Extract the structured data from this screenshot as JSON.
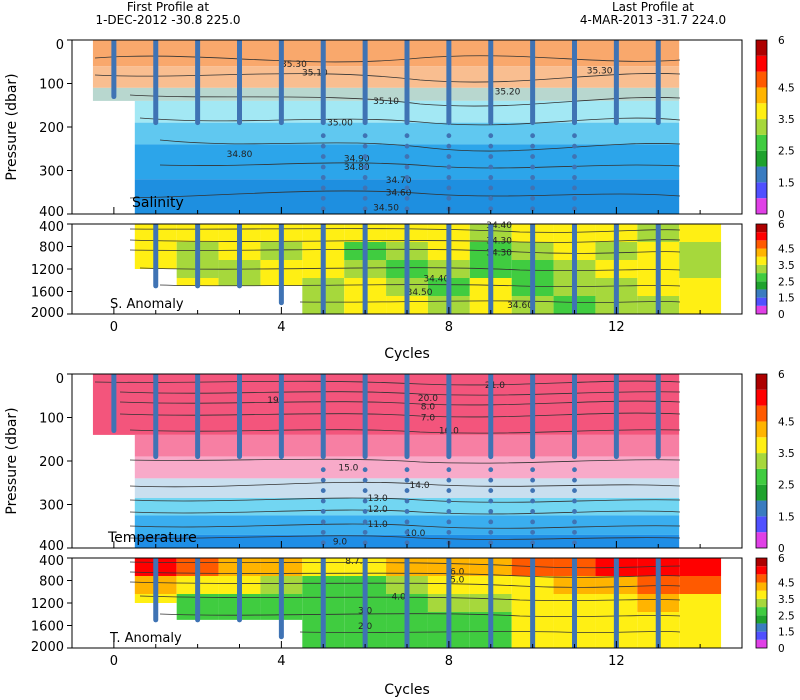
{
  "header": {
    "first_label": "First Profile at",
    "first_info": "1-DEC-2012   -30.8 225.0",
    "last_label": "Last Profile at",
    "last_info": "4-MAR-2013   -31.7 224.0"
  },
  "colorbar": {
    "ticks": [
      "0",
      "1.5",
      "2.5",
      "3.5",
      "4.5",
      "6"
    ],
    "colors": [
      "#e040e6",
      "#5050ff",
      "#3a7cc0",
      "#1fa22d",
      "#40cc40",
      "#a6d83c",
      "#ffef14",
      "#ffb400",
      "#ff5a00",
      "#ff0000",
      "#ad0000"
    ]
  },
  "colors": {
    "profile_marker": "#3f73b4",
    "contour": "#333333"
  },
  "chart_data": [
    {
      "type": "heatmap",
      "name": "salinity-panel",
      "label": "Salinity",
      "ylabel": "Pressure (dbar)",
      "xlim": [
        -1,
        15
      ],
      "ylim": [
        400,
        0
      ],
      "yticks": [
        "0",
        "100",
        "200",
        "300",
        "400"
      ],
      "bands": [
        {
          "from": 0,
          "to": 60,
          "color": "#f9a86c"
        },
        {
          "from": 60,
          "to": 110,
          "color": "#f9be90"
        },
        {
          "from": 110,
          "to": 140,
          "color": "#b8d7cf"
        },
        {
          "from": 140,
          "to": 190,
          "color": "#a3e8f4"
        },
        {
          "from": 190,
          "to": 240,
          "color": "#60c8f0"
        },
        {
          "from": 240,
          "to": 320,
          "color": "#2ca5ea"
        },
        {
          "from": 320,
          "to": 400,
          "color": "#1e8fe0"
        }
      ],
      "contour_labels": [
        {
          "text": "35.30",
          "x": 4.3,
          "y": 55
        },
        {
          "text": "35.30",
          "x": 11.6,
          "y": 70
        },
        {
          "text": "35.10",
          "x": 4.8,
          "y": 75
        },
        {
          "text": "35.20",
          "x": 9.4,
          "y": 118
        },
        {
          "text": "35.10",
          "x": 6.5,
          "y": 140
        },
        {
          "text": "35.00",
          "x": 5.4,
          "y": 190
        },
        {
          "text": "34.80",
          "x": 3.0,
          "y": 262
        },
        {
          "text": "34.90",
          "x": 5.8,
          "y": 272
        },
        {
          "text": "34.80",
          "x": 5.8,
          "y": 292
        },
        {
          "text": "34.70",
          "x": 6.8,
          "y": 322
        },
        {
          "text": "34.60",
          "x": 6.8,
          "y": 350
        },
        {
          "text": "34.50",
          "x": 6.5,
          "y": 385
        }
      ]
    },
    {
      "type": "heatmap",
      "name": "salinity-anomaly-panel",
      "label": "S. Anomaly",
      "ylim": [
        2000,
        400
      ],
      "yticks": [
        "400",
        "800",
        "1200",
        "1600",
        "2000"
      ],
      "contour_labels": [
        {
          "text": "34.40",
          "x": 9.2,
          "y": 420
        },
        {
          "text": "34.30",
          "x": 9.2,
          "y": 690
        },
        {
          "text": "34.30",
          "x": 9.2,
          "y": 910
        },
        {
          "text": "34.40",
          "x": 7.7,
          "y": 1370
        },
        {
          "text": "34.50",
          "x": 7.3,
          "y": 1610
        },
        {
          "text": "34.60",
          "x": 9.7,
          "y": 1840
        }
      ]
    },
    {
      "type": "heatmap",
      "name": "temperature-panel",
      "label": "Temperature",
      "ylabel": "Pressure (dbar)",
      "xlim": [
        -1,
        15
      ],
      "ylim": [
        400,
        0
      ],
      "yticks": [
        "0",
        "100",
        "200",
        "300",
        "400"
      ],
      "bands": [
        {
          "from": 0,
          "to": 140,
          "color": "#f3557c"
        },
        {
          "from": 140,
          "to": 190,
          "color": "#f77fa3"
        },
        {
          "from": 190,
          "to": 240,
          "color": "#f8aac9"
        },
        {
          "from": 240,
          "to": 285,
          "color": "#c9dfef"
        },
        {
          "from": 285,
          "to": 325,
          "color": "#72d6f2"
        },
        {
          "from": 325,
          "to": 370,
          "color": "#3aaeef"
        },
        {
          "from": 370,
          "to": 400,
          "color": "#1f8ee6"
        }
      ],
      "contour_labels": [
        {
          "text": "21.0",
          "x": 9.1,
          "y": 25
        },
        {
          "text": "20.0",
          "x": 7.5,
          "y": 55
        },
        {
          "text": "19",
          "x": 3.8,
          "y": 60
        },
        {
          "text": "8.0",
          "x": 7.5,
          "y": 75
        },
        {
          "text": "7.0",
          "x": 7.5,
          "y": 100
        },
        {
          "text": "16.0",
          "x": 8.0,
          "y": 130
        },
        {
          "text": "15.0",
          "x": 5.6,
          "y": 215
        },
        {
          "text": "14.0",
          "x": 7.3,
          "y": 255
        },
        {
          "text": "13.0",
          "x": 6.3,
          "y": 285
        },
        {
          "text": "12.0",
          "x": 6.3,
          "y": 310
        },
        {
          "text": "11.0",
          "x": 6.3,
          "y": 345
        },
        {
          "text": "10.0",
          "x": 7.2,
          "y": 365
        },
        {
          "text": "9.0",
          "x": 5.4,
          "y": 385
        }
      ]
    },
    {
      "type": "heatmap",
      "name": "temperature-anomaly-panel",
      "label": "T. Anomaly",
      "xlabel": "Cycles",
      "ylim": [
        2000,
        400
      ],
      "yticks": [
        "400",
        "800",
        "1200",
        "1600",
        "2000"
      ],
      "contour_labels": [
        {
          "text": "8.7.0",
          "x": 5.8,
          "y": 450
        },
        {
          "text": "6.0",
          "x": 8.2,
          "y": 640
        },
        {
          "text": "5.0",
          "x": 8.2,
          "y": 780
        },
        {
          "text": "4.0",
          "x": 6.8,
          "y": 1080
        },
        {
          "text": "3.0",
          "x": 6.0,
          "y": 1330
        },
        {
          "text": "2.0",
          "x": 6.0,
          "y": 1610
        }
      ]
    }
  ],
  "x_axis": {
    "xlabel": "Cycles",
    "ticks": [
      0,
      4,
      8,
      12
    ]
  },
  "profiles": {
    "cycles": [
      0,
      1,
      2,
      3,
      4,
      5,
      6,
      7,
      8,
      9,
      10,
      11,
      12,
      13
    ],
    "shallow_max_depth": [
      130,
      190,
      190,
      190,
      190,
      400,
      400,
      400,
      400,
      400,
      400,
      400,
      190,
      190
    ],
    "deep_max_depth": [
      null,
      1500,
      1500,
      1500,
      1800,
      2000,
      2000,
      2000,
      2000,
      2000,
      2000,
      2000,
      2000,
      2000
    ]
  }
}
